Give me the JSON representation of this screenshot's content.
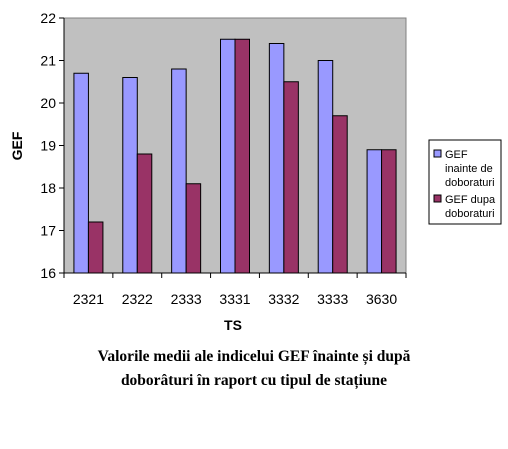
{
  "chart_data": {
    "type": "bar",
    "categories": [
      "2321",
      "2322",
      "2333",
      "3331",
      "3332",
      "3333",
      "3630"
    ],
    "series": [
      {
        "name": "GEF inainte de doboraturi",
        "values": [
          20.7,
          20.6,
          20.8,
          21.5,
          21.4,
          21.0,
          18.9
        ],
        "color": "#9999ff"
      },
      {
        "name": "GEF dupa doboraturi",
        "values": [
          17.2,
          18.8,
          18.1,
          21.5,
          20.5,
          19.7,
          18.9
        ],
        "color": "#993366"
      }
    ],
    "legend_lines": [
      [
        "GEF",
        "inainte de",
        "doboraturi"
      ],
      [
        "GEF dupa",
        "doboraturi"
      ]
    ],
    "xlabel": "TS",
    "ylabel": "GEF",
    "ylim": [
      16,
      22
    ],
    "yticks": [
      16,
      17,
      18,
      19,
      20,
      21,
      22
    ],
    "plot_background": "#c0c0c0",
    "legend_position": "right"
  },
  "caption": {
    "line1": "Valorile medii ale indicelui GEF înainte și după",
    "line2": "doborâturi în raport cu  tipul de stațiune"
  }
}
